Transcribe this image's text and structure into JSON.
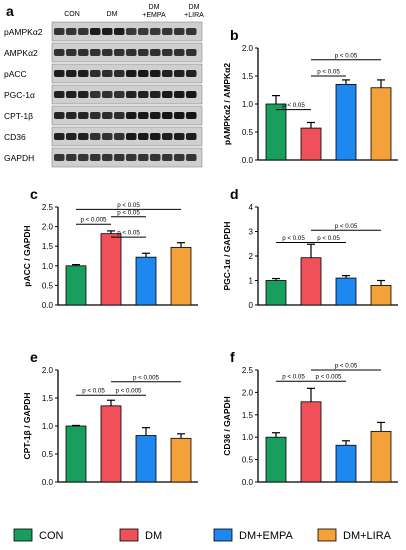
{
  "panel_a": {
    "label": "a",
    "columns": [
      "CON",
      "DM",
      "DM\n+EMPA",
      "DM\n+LIRA"
    ],
    "rows": [
      "pAMPKα2",
      "AMPKα2",
      "pACC",
      "PGC-1α",
      "CPT-1β",
      "CD36",
      "GAPDH"
    ]
  },
  "legend": {
    "items": [
      {
        "label": "CON",
        "color": "#1a9e5e"
      },
      {
        "label": "DM",
        "color": "#f0505a"
      },
      {
        "label": "DM+EMPA",
        "color": "#1e88f0"
      },
      {
        "label": "DM+LIRA",
        "color": "#f5a13a"
      }
    ]
  },
  "chart_data": [
    {
      "id": "b",
      "label": "b",
      "type": "bar",
      "categories": [
        "CON",
        "DM",
        "DM+EMPA",
        "DM+LIRA"
      ],
      "values": [
        1.0,
        0.57,
        1.35,
        1.29
      ],
      "errors": [
        0.15,
        0.1,
        0.08,
        0.14
      ],
      "ylabel": "pAMPKα2 / AMPKα2",
      "ylim": [
        0,
        2.0
      ],
      "yticks": [
        "0.0",
        "0.5",
        "1.0",
        "1.5",
        "2.0"
      ],
      "comparisons": [
        {
          "from": 0,
          "to": 1,
          "label": "p < 0.05",
          "y": 0.9
        },
        {
          "from": 1,
          "to": 2,
          "label": "p < 0.05",
          "y": 1.5
        },
        {
          "from": 1,
          "to": 3,
          "label": "p < 0.05",
          "y": 1.79
        }
      ]
    },
    {
      "id": "c",
      "label": "c",
      "type": "bar",
      "categories": [
        "CON",
        "DM",
        "DM+EMPA",
        "DM+LIRA"
      ],
      "values": [
        1.0,
        1.82,
        1.22,
        1.47
      ],
      "errors": [
        0.03,
        0.07,
        0.1,
        0.12
      ],
      "ylabel": "pACC / GAPDH",
      "ylim": [
        0,
        2.5
      ],
      "yticks": [
        "0.0",
        "0.5",
        "1.0",
        "1.5",
        "2.0",
        "2.5"
      ],
      "comparisons": [
        {
          "from": 1,
          "to": 2,
          "label": "p < 0.05",
          "y": 1.73
        },
        {
          "from": 0,
          "to": 1,
          "label": "p < 0.005",
          "y": 2.06
        },
        {
          "from": 1,
          "to": 2,
          "label": "p < 0.05",
          "y": 2.25
        },
        {
          "from": 0,
          "to": 3,
          "label": "p < 0.05",
          "y": 2.44
        }
      ]
    },
    {
      "id": "d",
      "label": "d",
      "type": "bar",
      "categories": [
        "CON",
        "DM",
        "DM+EMPA",
        "DM+LIRA"
      ],
      "values": [
        1.0,
        1.93,
        1.1,
        0.8
      ],
      "errors": [
        0.08,
        0.55,
        0.1,
        0.2
      ],
      "ylabel": "PGC-1α / GAPDH",
      "ylim": [
        0,
        4
      ],
      "yticks": [
        "0",
        "1",
        "2",
        "3",
        "4"
      ],
      "comparisons": [
        {
          "from": 0,
          "to": 1,
          "label": "p < 0.05",
          "y": 2.55
        },
        {
          "from": 1,
          "to": 2,
          "label": "p < 0.05",
          "y": 2.55
        },
        {
          "from": 1,
          "to": 3,
          "label": "p < 0.05",
          "y": 3.05
        }
      ]
    },
    {
      "id": "e",
      "label": "e",
      "type": "bar",
      "categories": [
        "CON",
        "DM",
        "DM+EMPA",
        "DM+LIRA"
      ],
      "values": [
        1.0,
        1.36,
        0.83,
        0.78
      ],
      "errors": [
        0.01,
        0.1,
        0.14,
        0.08
      ],
      "ylabel": "CPT-1β / GAPDH",
      "ylim": [
        0,
        2.0
      ],
      "yticks": [
        "0.0",
        "0.5",
        "1.0",
        "1.5",
        "2.0"
      ],
      "comparisons": [
        {
          "from": 0,
          "to": 1,
          "label": "p < 0.05",
          "y": 1.55
        },
        {
          "from": 1,
          "to": 2,
          "label": "p < 0.005",
          "y": 1.55
        },
        {
          "from": 1,
          "to": 3,
          "label": "p < 0.005",
          "y": 1.79
        }
      ]
    },
    {
      "id": "f",
      "label": "f",
      "type": "bar",
      "categories": [
        "CON",
        "DM",
        "DM+EMPA",
        "DM+LIRA"
      ],
      "values": [
        1.0,
        1.79,
        0.82,
        1.13
      ],
      "errors": [
        0.1,
        0.3,
        0.1,
        0.2
      ],
      "ylabel": "CD36 / GAPDH",
      "ylim": [
        0,
        2.5
      ],
      "yticks": [
        "0.0",
        "0.5",
        "1.0",
        "1.5",
        "2.0",
        "2.5"
      ],
      "comparisons": [
        {
          "from": 0,
          "to": 1,
          "label": "p < 0.05",
          "y": 2.25
        },
        {
          "from": 1,
          "to": 2,
          "label": "p < 0.005",
          "y": 2.25
        },
        {
          "from": 1,
          "to": 3,
          "label": "p < 0.05",
          "y": 2.5
        }
      ]
    }
  ]
}
